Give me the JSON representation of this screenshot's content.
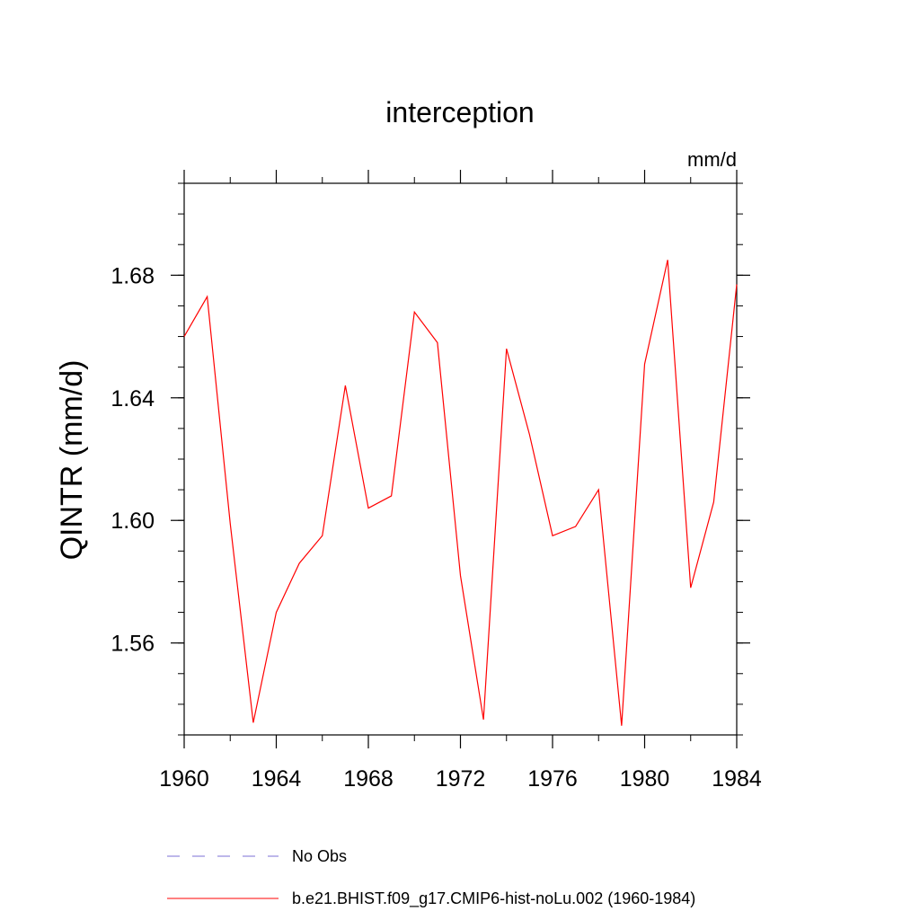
{
  "chart_data": {
    "type": "line",
    "title": "interception",
    "units": "mm/d",
    "ylabel": "QINTR  (mm/d)",
    "xlabel": "",
    "xlim": [
      1960,
      1984
    ],
    "ylim": [
      1.53,
      1.71
    ],
    "x_ticks": [
      1960,
      1964,
      1968,
      1972,
      1976,
      1980,
      1984
    ],
    "x_tick_labels": [
      "1960",
      "1964",
      "1968",
      "1972",
      "1976",
      "1980",
      "1984"
    ],
    "y_ticks": [
      1.56,
      1.6,
      1.64,
      1.68
    ],
    "y_tick_labels": [
      "1.56",
      "1.60",
      "1.64",
      "1.68"
    ],
    "x_minor_step": 2,
    "y_minor_step": 0.01,
    "grid": false,
    "legend_position": "bottom",
    "series": [
      {
        "name": "No Obs",
        "color": "#7b6fd6",
        "dash": "dashed",
        "x": [],
        "values": []
      },
      {
        "name": "b.e21.BHIST.f09_g17.CMIP6-hist-noLu.002 (1960-1984)",
        "color": "#ff0000",
        "dash": "solid",
        "x": [
          1960,
          1961,
          1962,
          1963,
          1964,
          1965,
          1966,
          1967,
          1968,
          1969,
          1970,
          1971,
          1972,
          1973,
          1974,
          1975,
          1976,
          1977,
          1978,
          1979,
          1980,
          1981,
          1982,
          1983,
          1984
        ],
        "values": [
          1.66,
          1.673,
          1.599,
          1.534,
          1.57,
          1.586,
          1.595,
          1.644,
          1.604,
          1.608,
          1.668,
          1.658,
          1.582,
          1.535,
          1.656,
          1.628,
          1.595,
          1.598,
          1.61,
          1.533,
          1.651,
          1.685,
          1.578,
          1.606,
          1.677
        ]
      }
    ]
  }
}
